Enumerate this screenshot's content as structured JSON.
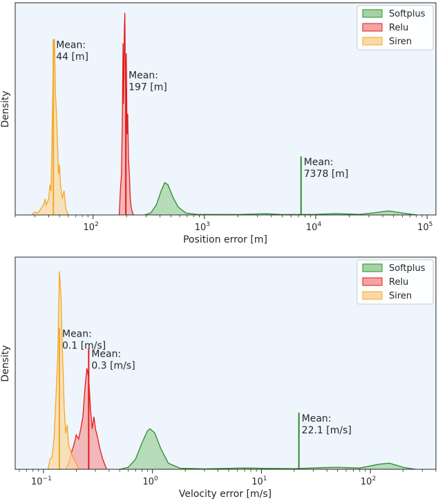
{
  "chart_data": [
    {
      "type": "area",
      "xscale": "log",
      "xlim": [
        20,
        120000
      ],
      "ylim": [
        0,
        1.05
      ],
      "xlabel": "Position error [m]",
      "ylabel": "Density",
      "xticks": [
        {
          "value": 100,
          "exp": "2"
        },
        {
          "value": 1000,
          "exp": "3"
        },
        {
          "value": 10000,
          "exp": "4"
        },
        {
          "value": 100000,
          "exp": "5"
        }
      ],
      "legend": {
        "position": "top-right",
        "entries": [
          {
            "label": "Softplus",
            "color": "#2e8b2e"
          },
          {
            "label": "Relu",
            "color": "#e41a1c"
          },
          {
            "label": "Siren",
            "color": "#f5a623"
          }
        ]
      },
      "series": [
        {
          "name": "Softplus",
          "color": "#2e8b2e",
          "fill": "#a3d3a3",
          "points": [
            [
              290,
              0.0
            ],
            [
              330,
              0.01
            ],
            [
              370,
              0.05
            ],
            [
              410,
              0.12
            ],
            [
              440,
              0.16
            ],
            [
              470,
              0.15
            ],
            [
              520,
              0.09
            ],
            [
              580,
              0.04
            ],
            [
              680,
              0.01
            ],
            [
              850,
              0.003
            ],
            [
              2000,
              0.002
            ],
            [
              3500,
              0.006
            ],
            [
              5000,
              0.002
            ],
            [
              10000,
              0.003
            ],
            [
              15000,
              0.006
            ],
            [
              25000,
              0.003
            ],
            [
              35000,
              0.012
            ],
            [
              45000,
              0.02
            ],
            [
              60000,
              0.01
            ],
            [
              80000,
              0.0
            ]
          ]
        },
        {
          "name": "Relu",
          "color": "#e41a1c",
          "fill": "#f4a3a3",
          "points": [
            [
              172,
              0.0
            ],
            [
              176,
              0.12
            ],
            [
              180,
              0.2
            ],
            [
              183,
              0.45
            ],
            [
              186,
              0.85
            ],
            [
              188,
              0.55
            ],
            [
              191,
              0.92
            ],
            [
              193,
              1.0
            ],
            [
              196,
              0.6
            ],
            [
              199,
              0.8
            ],
            [
              202,
              0.4
            ],
            [
              205,
              0.5
            ],
            [
              208,
              0.28
            ],
            [
              212,
              0.2
            ],
            [
              216,
              0.08
            ],
            [
              221,
              0.03
            ],
            [
              230,
              0.0
            ]
          ]
        },
        {
          "name": "Siren",
          "color": "#f5a623",
          "fill": "#fad9a6",
          "points": [
            [
              28,
              0.0
            ],
            [
              30,
              0.015
            ],
            [
              32,
              0.01
            ],
            [
              34,
              0.03
            ],
            [
              36,
              0.05
            ],
            [
              37,
              0.08
            ],
            [
              38,
              0.05
            ],
            [
              40,
              0.08
            ],
            [
              41,
              0.15
            ],
            [
              42,
              0.12
            ],
            [
              43,
              0.45
            ],
            [
              44,
              0.75
            ],
            [
              45,
              0.87
            ],
            [
              46,
              0.6
            ],
            [
              47,
              0.5
            ],
            [
              48,
              0.35
            ],
            [
              49,
              0.2
            ],
            [
              50,
              0.25
            ],
            [
              51,
              0.15
            ],
            [
              53,
              0.08
            ],
            [
              55,
              0.12
            ],
            [
              57,
              0.03
            ],
            [
              60,
              0.0
            ]
          ]
        }
      ],
      "means": [
        {
          "series": "Siren",
          "value": 44,
          "height": 0.87,
          "label": [
            "Mean:",
            "44 [m]"
          ]
        },
        {
          "series": "Relu",
          "value": 197,
          "height": 0.72,
          "label": [
            "Mean:",
            "197 [m]"
          ]
        },
        {
          "series": "Softplus",
          "value": 7378,
          "height": 0.29,
          "label": [
            "Mean:",
            "7378 [m]"
          ]
        }
      ]
    },
    {
      "type": "area",
      "xscale": "log",
      "xlim": [
        0.055,
        400
      ],
      "ylim": [
        0,
        1.05
      ],
      "xlabel": "Velocity error [m/s]",
      "ylabel": "Density",
      "xticks": [
        {
          "value": 0.1,
          "exp": "−1"
        },
        {
          "value": 1,
          "exp": "0"
        },
        {
          "value": 10,
          "exp": "1"
        },
        {
          "value": 100,
          "exp": "2"
        }
      ],
      "legend": {
        "position": "top-right",
        "entries": [
          {
            "label": "Softplus",
            "color": "#2e8b2e"
          },
          {
            "label": "Relu",
            "color": "#e41a1c"
          },
          {
            "label": "Siren",
            "color": "#f5a623"
          }
        ]
      },
      "series": [
        {
          "name": "Softplus",
          "color": "#2e8b2e",
          "fill": "#a3d3a3",
          "points": [
            [
              0.5,
              0.0
            ],
            [
              0.6,
              0.01
            ],
            [
              0.7,
              0.05
            ],
            [
              0.8,
              0.13
            ],
            [
              0.9,
              0.19
            ],
            [
              0.95,
              0.2
            ],
            [
              1.05,
              0.18
            ],
            [
              1.2,
              0.1
            ],
            [
              1.4,
              0.03
            ],
            [
              1.8,
              0.005
            ],
            [
              3,
              0.002
            ],
            [
              7,
              0.006
            ],
            [
              12,
              0.004
            ],
            [
              20,
              0.003
            ],
            [
              35,
              0.008
            ],
            [
              50,
              0.01
            ],
            [
              80,
              0.006
            ],
            [
              120,
              0.025
            ],
            [
              150,
              0.03
            ],
            [
              200,
              0.01
            ],
            [
              260,
              0.0
            ]
          ]
        },
        {
          "name": "Relu",
          "color": "#e41a1c",
          "fill": "#f4a3a3",
          "points": [
            [
              0.16,
              0.0
            ],
            [
              0.17,
              0.03
            ],
            [
              0.18,
              0.08
            ],
            [
              0.19,
              0.12
            ],
            [
              0.2,
              0.17
            ],
            [
              0.21,
              0.15
            ],
            [
              0.22,
              0.2
            ],
            [
              0.23,
              0.26
            ],
            [
              0.24,
              0.4
            ],
            [
              0.25,
              0.5
            ],
            [
              0.26,
              0.45
            ],
            [
              0.27,
              0.3
            ],
            [
              0.28,
              0.2
            ],
            [
              0.29,
              0.26
            ],
            [
              0.3,
              0.2
            ],
            [
              0.31,
              0.17
            ],
            [
              0.33,
              0.1
            ],
            [
              0.35,
              0.05
            ],
            [
              0.38,
              0.0
            ]
          ]
        },
        {
          "name": "Siren",
          "color": "#f5a623",
          "fill": "#fad9a6",
          "points": [
            [
              0.11,
              0.0
            ],
            [
              0.115,
              0.05
            ],
            [
              0.12,
              0.06
            ],
            [
              0.125,
              0.15
            ],
            [
              0.13,
              0.35
            ],
            [
              0.135,
              0.55
            ],
            [
              0.14,
              0.98
            ],
            [
              0.145,
              0.85
            ],
            [
              0.15,
              0.55
            ],
            [
              0.155,
              0.3
            ],
            [
              0.16,
              0.18
            ],
            [
              0.165,
              0.22
            ],
            [
              0.17,
              0.12
            ],
            [
              0.175,
              0.1
            ],
            [
              0.18,
              0.08
            ],
            [
              0.19,
              0.05
            ],
            [
              0.2,
              0.03
            ],
            [
              0.21,
              0.0
            ]
          ]
        }
      ],
      "means": [
        {
          "series": "Siren",
          "value": 0.14,
          "height": 0.7,
          "label": [
            "Mean:",
            "0.1 [m/s]"
          ]
        },
        {
          "series": "Relu",
          "value": 0.26,
          "height": 0.6,
          "label": [
            "Mean:",
            "0.3 [m/s]"
          ]
        },
        {
          "series": "Softplus",
          "value": 22.1,
          "height": 0.28,
          "label": [
            "Mean:",
            "22.1 [m/s]"
          ]
        }
      ]
    }
  ]
}
